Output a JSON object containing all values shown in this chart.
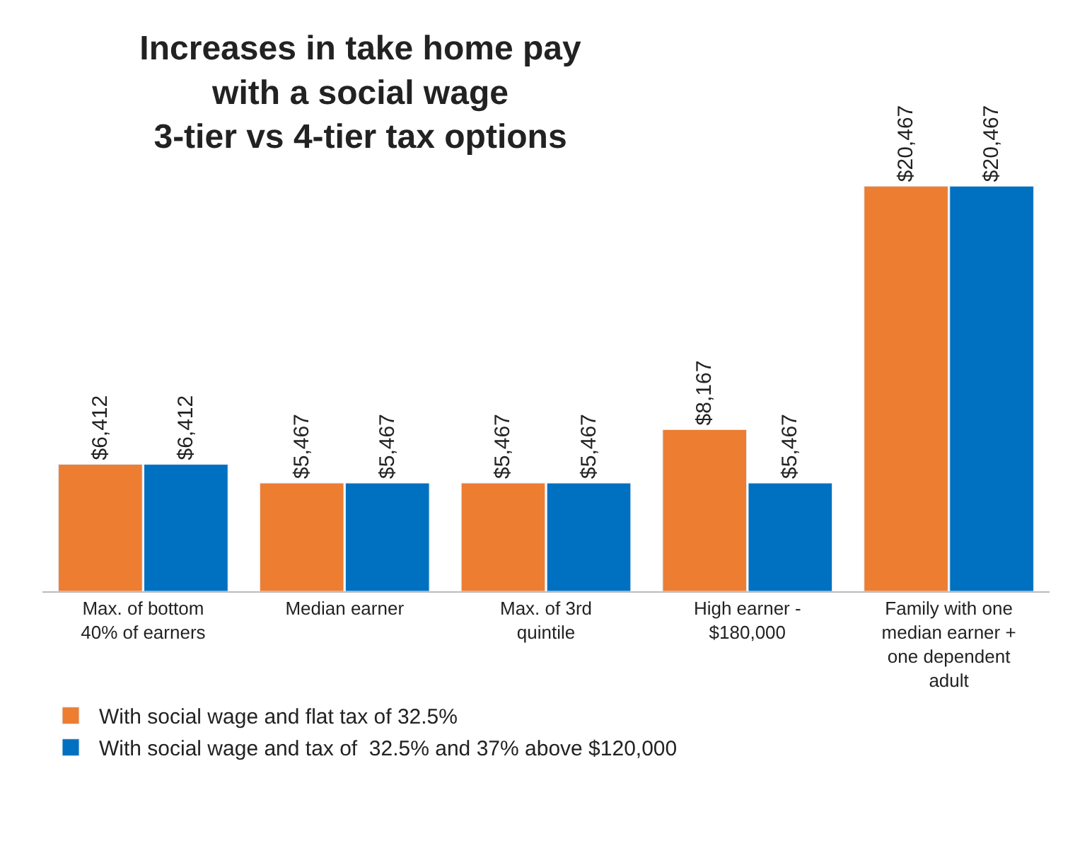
{
  "chart_data": {
    "type": "bar",
    "title": "Increases in take home pay\nwith a social wage\n3-tier vs 4-tier tax options",
    "categories": [
      "Max. of bottom 40% of earners",
      "Median earner",
      "Max. of 3rd quintile",
      "High earner - $180,000",
      "Family with one median earner + one dependent adult"
    ],
    "series": [
      {
        "name": "With social wage and flat tax of 32.5%",
        "color": "#ed7d31",
        "values": [
          6412,
          5467,
          5467,
          8167,
          20467
        ],
        "value_labels": [
          "$6,412",
          "$5,467",
          "$5,467",
          "$8,167",
          "$20,467"
        ]
      },
      {
        "name": "With social wage and tax of  32.5% and 37% above $120,000",
        "color": "#0070c0",
        "values": [
          6412,
          5467,
          5467,
          5467,
          20467
        ],
        "value_labels": [
          "$6,412",
          "$5,467",
          "$5,467",
          "$5,467",
          "$20,467"
        ]
      }
    ],
    "legend": "bottom left"
  }
}
